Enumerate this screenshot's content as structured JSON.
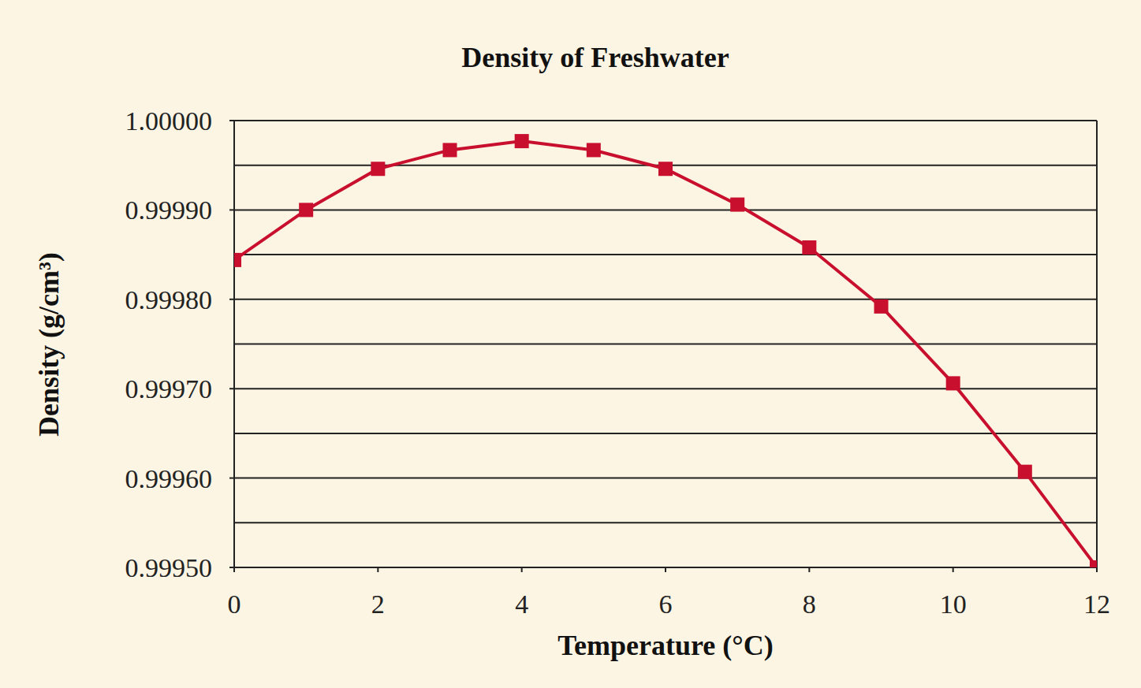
{
  "chart_data": {
    "type": "line",
    "title": "Density of Freshwater",
    "x_label": "Temperature (°C)",
    "y_label": "Density (g/cm³)",
    "x": [
      0,
      1,
      2,
      3,
      4,
      5,
      6,
      7,
      8,
      9,
      10,
      11,
      12
    ],
    "values": [
      0.999844,
      0.9999,
      0.999946,
      0.999967,
      0.999977,
      0.999967,
      0.999946,
      0.999906,
      0.999858,
      0.999792,
      0.999706,
      0.999607,
      0.9995
    ],
    "color": "#c8102e",
    "marker": "square",
    "xlim": [
      0,
      12
    ],
    "xticks": [
      0,
      2,
      4,
      6,
      8,
      10,
      12
    ],
    "ylim": [
      0.9995,
      1
    ],
    "yticks": [
      {
        "value": 0.9995,
        "label": "0.99950"
      },
      {
        "value": 0.9996,
        "label": "0.99960"
      },
      {
        "value": 0.9997,
        "label": "0.99970"
      },
      {
        "value": 0.9998,
        "label": "0.99980"
      },
      {
        "value": 0.9999,
        "label": "0.99990"
      },
      {
        "value": 1,
        "label": "1.00000"
      }
    ],
    "grid": true
  }
}
